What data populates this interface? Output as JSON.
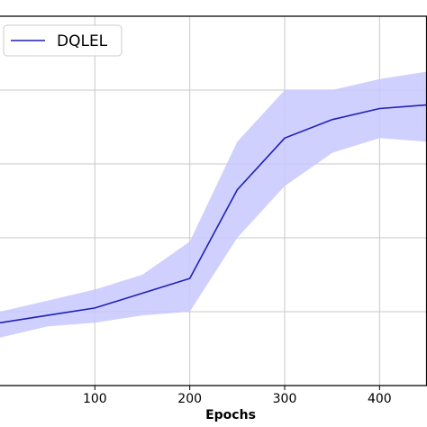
{
  "chart_data": {
    "type": "line",
    "xlabel": "Epochs",
    "ylabel": "",
    "title": "",
    "xlim": [
      0,
      450
    ],
    "ylim": [
      0,
      1
    ],
    "x_ticks": [
      100,
      200,
      300,
      400
    ],
    "y_gridlines": [
      0.2,
      0.4,
      0.6,
      0.8
    ],
    "grid": true,
    "legend_position": "top-left",
    "series": [
      {
        "name": "DQLEL",
        "color": "#1f1fb4",
        "band_color": "#c8c8ff",
        "x": [
          0,
          50,
          100,
          150,
          200,
          250,
          300,
          350,
          400,
          450
        ],
        "y": [
          0.17,
          0.19,
          0.21,
          0.25,
          0.29,
          0.53,
          0.67,
          0.72,
          0.75,
          0.76
        ],
        "upper": [
          0.2,
          0.23,
          0.26,
          0.3,
          0.39,
          0.66,
          0.8,
          0.8,
          0.83,
          0.85
        ],
        "lower": [
          0.13,
          0.16,
          0.17,
          0.19,
          0.2,
          0.4,
          0.54,
          0.63,
          0.67,
          0.66
        ]
      }
    ]
  }
}
